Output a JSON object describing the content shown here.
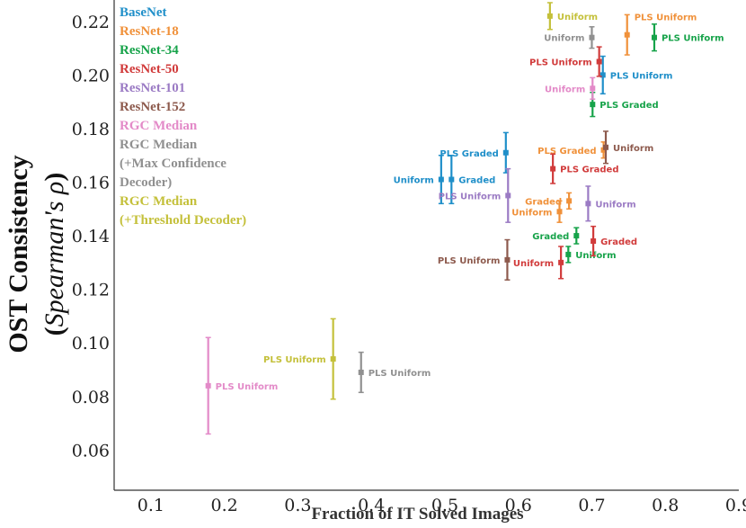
{
  "chart_data": {
    "type": "scatter",
    "xlabel": "Fraction of IT Solved Images",
    "ylabel": "OST Consistency",
    "ylabel_sub_open": "(",
    "ylabel_sub_italic": "Spearman's ρ",
    "ylabel_sub_close": ")",
    "xlim": [
      0.05,
      0.9
    ],
    "ylim": [
      0.045,
      0.228
    ],
    "xticks": [
      "0.1",
      "0.2",
      "0.3",
      "0.4",
      "0.5",
      "0.6",
      "0.7",
      "0.8",
      "0.9"
    ],
    "xtick_values": [
      0.1,
      0.2,
      0.3,
      0.4,
      0.5,
      0.6,
      0.7,
      0.8,
      0.9
    ],
    "yticks": [
      "0.06",
      "0.08",
      "0.10",
      "0.12",
      "0.14",
      "0.16",
      "0.18",
      "0.20",
      "0.22"
    ],
    "ytick_values": [
      0.06,
      0.08,
      0.1,
      0.12,
      0.14,
      0.16,
      0.18,
      0.2,
      0.22
    ],
    "legend": [
      {
        "name": "BaseNet",
        "color": "#1f8fc9"
      },
      {
        "name": "ResNet-18",
        "color": "#f0913a"
      },
      {
        "name": "ResNet-34",
        "color": "#17a34a"
      },
      {
        "name": "ResNet-50",
        "color": "#d13b3b"
      },
      {
        "name": "ResNet-101",
        "color": "#9b7bc4"
      },
      {
        "name": "ResNet-152",
        "color": "#8d5a4d"
      },
      {
        "name": "RGC Median",
        "color": "#e38ac8"
      },
      {
        "name": "RGC Median",
        "color": "#909090"
      },
      {
        "name": "(+Max Confidence",
        "color": "#909090"
      },
      {
        "name": "Decoder)",
        "color": "#909090"
      },
      {
        "name": "RGC Median",
        "color": "#c4c03a"
      },
      {
        "name": "(+Threshold Decoder)",
        "color": "#c4c03a"
      }
    ],
    "series": [
      {
        "name": "BaseNet",
        "color": "#1f8fc9",
        "points": [
          {
            "x": 0.715,
            "y": 0.2,
            "err": 0.007,
            "label": "PLS  Uniform",
            "anchor": "right"
          },
          {
            "x": 0.583,
            "y": 0.171,
            "err": 0.0075,
            "label": "PLS  Graded",
            "anchor": "left"
          },
          {
            "x": 0.509,
            "y": 0.161,
            "err": 0.009,
            "label": "Graded",
            "anchor": "right"
          },
          {
            "x": 0.495,
            "y": 0.161,
            "err": 0.009,
            "label": "Uniform",
            "anchor": "left"
          }
        ]
      },
      {
        "name": "ResNet-18",
        "color": "#f0913a",
        "points": [
          {
            "x": 0.748,
            "y": 0.215,
            "err": 0.0075,
            "label": "PLS  Uniform",
            "anchor": "above"
          },
          {
            "x": 0.716,
            "y": 0.172,
            "err": 0.003,
            "label": "PLS  Graded",
            "anchor": "left"
          },
          {
            "x": 0.669,
            "y": 0.153,
            "err": 0.003,
            "label": "Graded",
            "anchor": "left"
          },
          {
            "x": 0.656,
            "y": 0.149,
            "err": 0.004,
            "label": "Uniform",
            "anchor": "left"
          }
        ]
      },
      {
        "name": "ResNet-34",
        "color": "#17a34a",
        "points": [
          {
            "x": 0.785,
            "y": 0.214,
            "err": 0.005,
            "label": "PLS  Uniform",
            "anchor": "right"
          },
          {
            "x": 0.701,
            "y": 0.189,
            "err": 0.0045,
            "label": "PLS  Graded",
            "anchor": "right"
          },
          {
            "x": 0.679,
            "y": 0.14,
            "err": 0.003,
            "label": "Graded",
            "anchor": "left"
          },
          {
            "x": 0.668,
            "y": 0.133,
            "err": 0.003,
            "label": "Uniform",
            "anchor": "right"
          }
        ]
      },
      {
        "name": "ResNet-50",
        "color": "#d13b3b",
        "points": [
          {
            "x": 0.71,
            "y": 0.205,
            "err": 0.0055,
            "label": "PLS  Uniform",
            "anchor": "left"
          },
          {
            "x": 0.647,
            "y": 0.165,
            "err": 0.0055,
            "label": "PLS  Graded",
            "anchor": "right"
          },
          {
            "x": 0.702,
            "y": 0.138,
            "err": 0.0055,
            "label": "Graded",
            "anchor": "right"
          },
          {
            "x": 0.658,
            "y": 0.13,
            "err": 0.006,
            "label": "Uniform",
            "anchor": "left"
          }
        ]
      },
      {
        "name": "ResNet-101",
        "color": "#9b7bc4",
        "points": [
          {
            "x": 0.586,
            "y": 0.155,
            "err": 0.01,
            "label": "PLS  Uniform",
            "anchor": "left"
          },
          {
            "x": 0.695,
            "y": 0.152,
            "err": 0.0065,
            "label": "Uniform",
            "anchor": "right"
          }
        ]
      },
      {
        "name": "ResNet-152",
        "color": "#8d5a4d",
        "points": [
          {
            "x": 0.719,
            "y": 0.173,
            "err": 0.006,
            "label": "Uniform",
            "anchor": "right"
          },
          {
            "x": 0.585,
            "y": 0.131,
            "err": 0.0075,
            "label": "PLS  Uniform",
            "anchor": "left"
          }
        ]
      },
      {
        "name": "RGC Median",
        "color": "#e38ac8",
        "points": [
          {
            "x": 0.701,
            "y": 0.195,
            "err": 0.004,
            "label": "Uniform",
            "anchor": "left"
          },
          {
            "x": 0.178,
            "y": 0.084,
            "err": 0.018,
            "label": "PLS  Uniform",
            "anchor": "right"
          }
        ]
      },
      {
        "name": "RGC Median (+Max Confidence Decoder)",
        "color": "#909090",
        "points": [
          {
            "x": 0.7,
            "y": 0.214,
            "err": 0.004,
            "label": "Uniform",
            "anchor": "left"
          },
          {
            "x": 0.386,
            "y": 0.089,
            "err": 0.0075,
            "label": "PLS  Uniform",
            "anchor": "right"
          }
        ]
      },
      {
        "name": "RGC Median (+Threshold Decoder)",
        "color": "#c4c03a",
        "points": [
          {
            "x": 0.643,
            "y": 0.222,
            "err": 0.005,
            "label": "Uniform",
            "anchor": "right"
          },
          {
            "x": 0.348,
            "y": 0.094,
            "err": 0.015,
            "label": "PLS  Uniform",
            "anchor": "left"
          }
        ]
      }
    ]
  }
}
